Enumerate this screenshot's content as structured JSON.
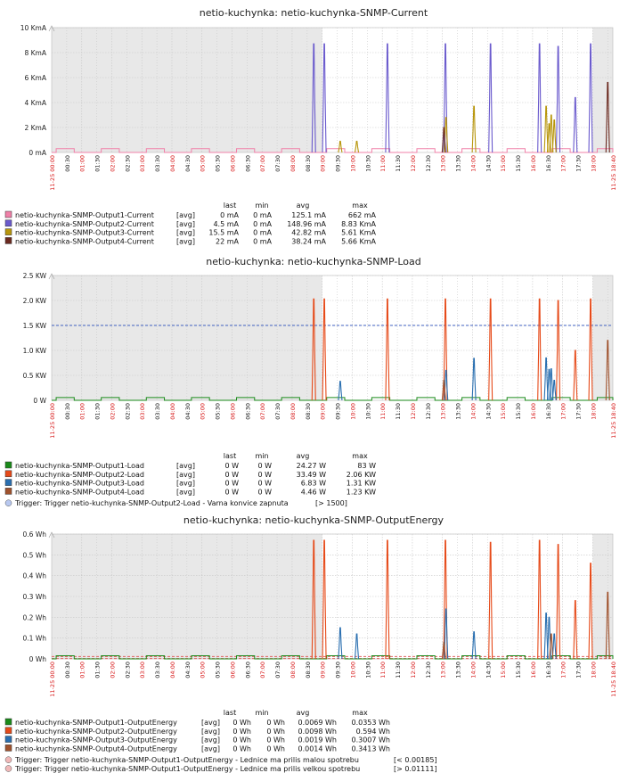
{
  "x_tick_labels": [
    "11-25 00:00",
    "00:30",
    "01:00",
    "01:30",
    "02:00",
    "02:30",
    "03:00",
    "03:30",
    "04:00",
    "04:30",
    "05:00",
    "05:30",
    "06:00",
    "06:30",
    "07:00",
    "07:30",
    "08:00",
    "08:30",
    "09:00",
    "09:30",
    "10:00",
    "10:30",
    "11:00",
    "11:30",
    "12:00",
    "12:30",
    "13:00",
    "13:30",
    "14:00",
    "14:30",
    "15:00",
    "15:30",
    "16:00",
    "16:30",
    "17:00",
    "17:30",
    "18:00",
    "11-25 18:40"
  ],
  "legend_headers": [
    "last",
    "min",
    "avg",
    "max"
  ],
  "colors": {
    "grid": "#c8c8c8",
    "shade": "#e8e8e8",
    "hour_label": "#d92020"
  },
  "chart_data": [
    {
      "type": "line",
      "title": "netio-kuchynka: netio-kuchynka-SNMP-Current",
      "unit": "mA",
      "ylim": [
        0,
        10000
      ],
      "y_ticks": [
        0,
        2000,
        4000,
        6000,
        8000,
        10000
      ],
      "y_tick_labels": [
        "0 mA",
        "2 KmA",
        "4 KmA",
        "6 KmA",
        "8 KmA",
        "10 KmA"
      ],
      "x_range_hours": [
        0,
        18.67
      ],
      "legend_rows": [
        {
          "name": "netio-kuchynka-SNMP-Output1-Current",
          "func": "[avg]",
          "last": "0 mA",
          "min": "0 mA",
          "avg": "125.1 mA",
          "max": "662 mA",
          "color": "#f080a8"
        },
        {
          "name": "netio-kuchynka-SNMP-Output2-Current",
          "func": "[avg]",
          "last": "4.5 mA",
          "min": "0 mA",
          "avg": "148.96 mA",
          "max": "8.83 KmA",
          "color": "#6a5acd"
        },
        {
          "name": "netio-kuchynka-SNMP-Output3-Current",
          "func": "[avg]",
          "last": "15.5 mA",
          "min": "0 mA",
          "avg": "42.82 mA",
          "max": "5.61 KmA",
          "color": "#b8960c"
        },
        {
          "name": "netio-kuchynka-SNMP-Output4-Current",
          "func": "[avg]",
          "last": "22 mA",
          "min": "0 mA",
          "avg": "38.24 mA",
          "max": "5.66 KmA",
          "color": "#6b2a20"
        }
      ],
      "series": [
        {
          "name": "Output1",
          "color": "#f080a8",
          "kind": "cycle",
          "value": 300
        },
        {
          "name": "Output2",
          "color": "#6a5acd",
          "kind": "spikes",
          "points": [
            [
              8.72,
              8700
            ],
            [
              9.07,
              8700
            ],
            [
              11.17,
              8700
            ],
            [
              13.1,
              8700
            ],
            [
              14.6,
              8700
            ],
            [
              16.23,
              8700
            ],
            [
              16.85,
              8500
            ],
            [
              17.42,
              4400
            ],
            [
              17.93,
              8700
            ]
          ]
        },
        {
          "name": "Output3",
          "color": "#b8960c",
          "kind": "spikes",
          "points": [
            [
              9.6,
              900
            ],
            [
              10.15,
              900
            ],
            [
              13.12,
              2800
            ],
            [
              14.05,
              3700
            ],
            [
              16.45,
              3700
            ],
            [
              16.55,
              2300
            ],
            [
              16.62,
              3000
            ],
            [
              16.72,
              2600
            ]
          ]
        },
        {
          "name": "Output4",
          "color": "#6b2a20",
          "kind": "spikes",
          "points": [
            [
              13.05,
              2000
            ],
            [
              18.5,
              5600
            ]
          ]
        }
      ]
    },
    {
      "type": "line",
      "title": "netio-kuchynka: netio-kuchynka-SNMP-Load",
      "unit": "W",
      "ylim": [
        0,
        2500
      ],
      "y_ticks": [
        0,
        500,
        1000,
        1500,
        2000,
        2500
      ],
      "y_tick_labels": [
        "0 W",
        "0.5 KW",
        "1.0 KW",
        "1.5 KW",
        "2.0 KW",
        "2.5 KW"
      ],
      "x_range_hours": [
        0,
        18.67
      ],
      "legend_rows": [
        {
          "name": "netio-kuchynka-SNMP-Output1-Load",
          "func": "[avg]",
          "last": "0 W",
          "min": "0 W",
          "avg": "24.27 W",
          "max": "83 W",
          "color": "#1a8a1a"
        },
        {
          "name": "netio-kuchynka-SNMP-Output2-Load",
          "func": "[avg]",
          "last": "0 W",
          "min": "0 W",
          "avg": "33.49 W",
          "max": "2.06 KW",
          "color": "#e64a19"
        },
        {
          "name": "netio-kuchynka-SNMP-Output3-Load",
          "func": "[avg]",
          "last": "0 W",
          "min": "0 W",
          "avg": "6.83 W",
          "max": "1.31 KW",
          "color": "#2a6fb0"
        },
        {
          "name": "netio-kuchynka-SNMP-Output4-Load",
          "func": "[avg]",
          "last": "0 W",
          "min": "0 W",
          "avg": "4.46 W",
          "max": "1.23 KW",
          "color": "#a0522d"
        }
      ],
      "triggers": [
        {
          "label": "Trigger: Trigger netio-kuchynka-SNMP-Output2-Load - Varna konvice zapnuta",
          "cond": "[> 1500]",
          "value": 1500,
          "color": "#4060c0"
        }
      ],
      "series": [
        {
          "name": "Output1",
          "color": "#1a8a1a",
          "kind": "cycle",
          "value": 55
        },
        {
          "name": "Output2",
          "color": "#e64a19",
          "kind": "spikes",
          "points": [
            [
              8.72,
              2030
            ],
            [
              9.07,
              2030
            ],
            [
              11.17,
              2030
            ],
            [
              13.1,
              2030
            ],
            [
              14.6,
              2030
            ],
            [
              16.23,
              2030
            ],
            [
              16.85,
              2000
            ],
            [
              17.42,
              1000
            ],
            [
              17.93,
              2030
            ]
          ]
        },
        {
          "name": "Output3",
          "color": "#2a6fb0",
          "kind": "spikes",
          "points": [
            [
              9.6,
              380
            ],
            [
              13.12,
              600
            ],
            [
              14.05,
              840
            ],
            [
              16.45,
              850
            ],
            [
              16.55,
              620
            ],
            [
              16.62,
              630
            ],
            [
              16.72,
              400
            ]
          ]
        },
        {
          "name": "Output4",
          "color": "#a0522d",
          "kind": "spikes",
          "points": [
            [
              13.05,
              400
            ],
            [
              18.5,
              1200
            ]
          ]
        }
      ]
    },
    {
      "type": "line",
      "title": "netio-kuchynka: netio-kuchynka-SNMP-OutputEnergy",
      "unit": "Wh",
      "ylim": [
        0,
        0.6
      ],
      "y_ticks": [
        0,
        0.1,
        0.2,
        0.3,
        0.4,
        0.5,
        0.6
      ],
      "y_tick_labels": [
        "0 Wh",
        "0.1 Wh",
        "0.2 Wh",
        "0.3 Wh",
        "0.4 Wh",
        "0.5 Wh",
        "0.6 Wh"
      ],
      "x_range_hours": [
        0,
        18.67
      ],
      "legend_rows": [
        {
          "name": "netio-kuchynka-SNMP-Output1-OutputEnergy",
          "func": "[avg]",
          "last": "0 Wh",
          "min": "0 Wh",
          "avg": "0.0069 Wh",
          "max": "0.0353 Wh",
          "color": "#1a8a1a"
        },
        {
          "name": "netio-kuchynka-SNMP-Output2-OutputEnergy",
          "func": "[avg]",
          "last": "0 Wh",
          "min": "0 Wh",
          "avg": "0.0098 Wh",
          "max": "0.594 Wh",
          "color": "#e64a19"
        },
        {
          "name": "netio-kuchynka-SNMP-Output3-OutputEnergy",
          "func": "[avg]",
          "last": "0 Wh",
          "min": "0 Wh",
          "avg": "0.0019 Wh",
          "max": "0.3007 Wh",
          "color": "#2a6fb0"
        },
        {
          "name": "netio-kuchynka-SNMP-Output4-OutputEnergy",
          "func": "[avg]",
          "last": "0 Wh",
          "min": "0 Wh",
          "avg": "0.0014 Wh",
          "max": "0.3413 Wh",
          "color": "#a0522d"
        }
      ],
      "triggers": [
        {
          "label": "Trigger: Trigger netio-kuchynka-SNMP-Output1-OutputEnergy - Lednice ma prilis malou spotrebu",
          "cond": "[< 0.00185]",
          "value": 0.00185,
          "color": "#e06060"
        },
        {
          "label": "Trigger: Trigger netio-kuchynka-SNMP-Output1-OutputEnergy - Lednice ma prilis velkou spotrebu",
          "cond": "[> 0.01111]",
          "value": 0.01111,
          "color": "#e06060"
        }
      ],
      "series": [
        {
          "name": "Output1",
          "color": "#1a8a1a",
          "kind": "cycle",
          "value": 0.015
        },
        {
          "name": "Output2",
          "color": "#e64a19",
          "kind": "spikes",
          "points": [
            [
              8.72,
              0.57
            ],
            [
              9.07,
              0.57
            ],
            [
              11.17,
              0.57
            ],
            [
              13.1,
              0.57
            ],
            [
              14.6,
              0.56
            ],
            [
              16.23,
              0.57
            ],
            [
              16.85,
              0.55
            ],
            [
              17.42,
              0.28
            ],
            [
              17.93,
              0.46
            ]
          ]
        },
        {
          "name": "Output3",
          "color": "#2a6fb0",
          "kind": "spikes",
          "points": [
            [
              9.6,
              0.15
            ],
            [
              10.15,
              0.12
            ],
            [
              13.12,
              0.24
            ],
            [
              14.05,
              0.13
            ],
            [
              16.45,
              0.22
            ],
            [
              16.55,
              0.2
            ],
            [
              16.72,
              0.12
            ]
          ]
        },
        {
          "name": "Output4",
          "color": "#a0522d",
          "kind": "spikes",
          "points": [
            [
              13.05,
              0.08
            ],
            [
              16.62,
              0.12
            ],
            [
              18.5,
              0.32
            ]
          ]
        }
      ]
    }
  ]
}
